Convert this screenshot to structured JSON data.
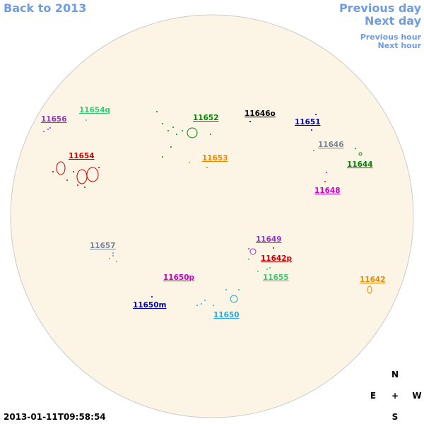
{
  "nav": {
    "back": "Back to 2013",
    "previous_day": "Previous day",
    "next_day": "Next day",
    "previous_hour": "Previous hour",
    "next_hour": "Next hour"
  },
  "regions": [
    {
      "label": "11656",
      "color": "#9933cc"
    },
    {
      "label": "11654q",
      "color": "#33cc77"
    },
    {
      "label": "11652",
      "color": "#008800"
    },
    {
      "label": "11646o",
      "color": "#000000"
    },
    {
      "label": "11651",
      "color": "#0000bb"
    },
    {
      "label": "11654",
      "color": "#cc0000"
    },
    {
      "label": "11653",
      "color": "#ee8800"
    },
    {
      "label": "11646",
      "color": "#778899"
    },
    {
      "label": "11644",
      "color": "#008800"
    },
    {
      "label": "11648",
      "color": "#cc00cc"
    },
    {
      "label": "11657",
      "color": "#778899"
    },
    {
      "label": "11649",
      "color": "#9933cc"
    },
    {
      "label": "11642p",
      "color": "#cc0000"
    },
    {
      "label": "11655",
      "color": "#33cc77"
    },
    {
      "label": "11650p",
      "color": "#cc00cc"
    },
    {
      "label": "11642",
      "color": "#ee8800"
    },
    {
      "label": "11650m",
      "color": "#0000bb"
    },
    {
      "label": "11650",
      "color": "#22aadd"
    }
  ],
  "compass": {
    "n": "N",
    "e": "E",
    "center": "+",
    "w": "W",
    "s": "S"
  },
  "timestamp": "2013-01-11T09:58:54"
}
